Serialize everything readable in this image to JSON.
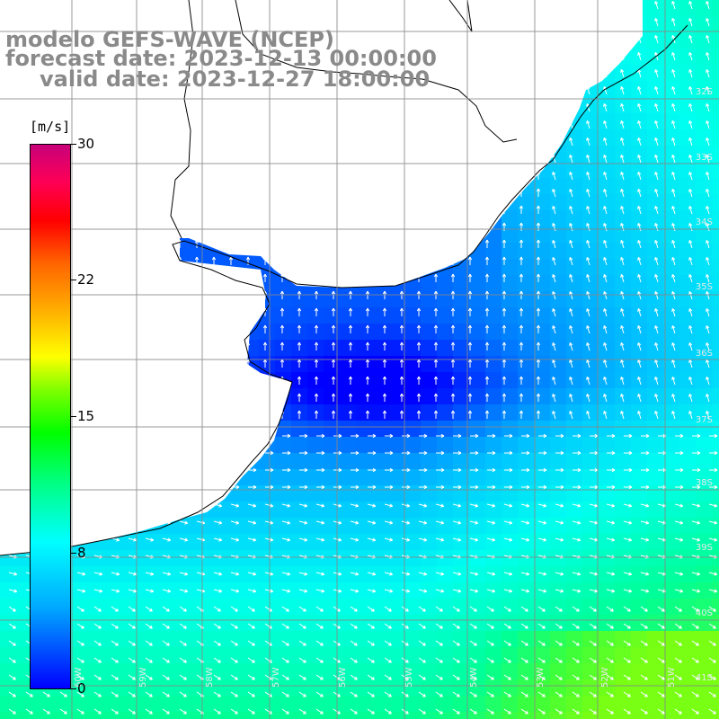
{
  "title": {
    "line1": "modelo GEFS-WAVE (NCEP)",
    "line2": "forecast date: 2023-12-13 00:00:00",
    "line3": "valid date: 2023-12-27 18:00:00"
  },
  "colorbar": {
    "unit": "[m/s]",
    "ticks": [
      "30",
      "22",
      "15",
      "8",
      "0"
    ],
    "colors": [
      "#0000ff",
      "#00aaff",
      "#00ffff",
      "#00ff00",
      "#ffff00",
      "#ff0000",
      "#c8007a"
    ]
  },
  "lat_labels": [
    "32S",
    "33S",
    "34S",
    "35S",
    "36S",
    "37S",
    "38S",
    "39S",
    "40S",
    "41S"
  ],
  "lon_labels": [
    "60W",
    "59W",
    "58W",
    "57W",
    "56W",
    "55W",
    "54W",
    "53W",
    "52W",
    "51W"
  ],
  "land_color": "#ffffff",
  "grid_color": "#888888"
}
